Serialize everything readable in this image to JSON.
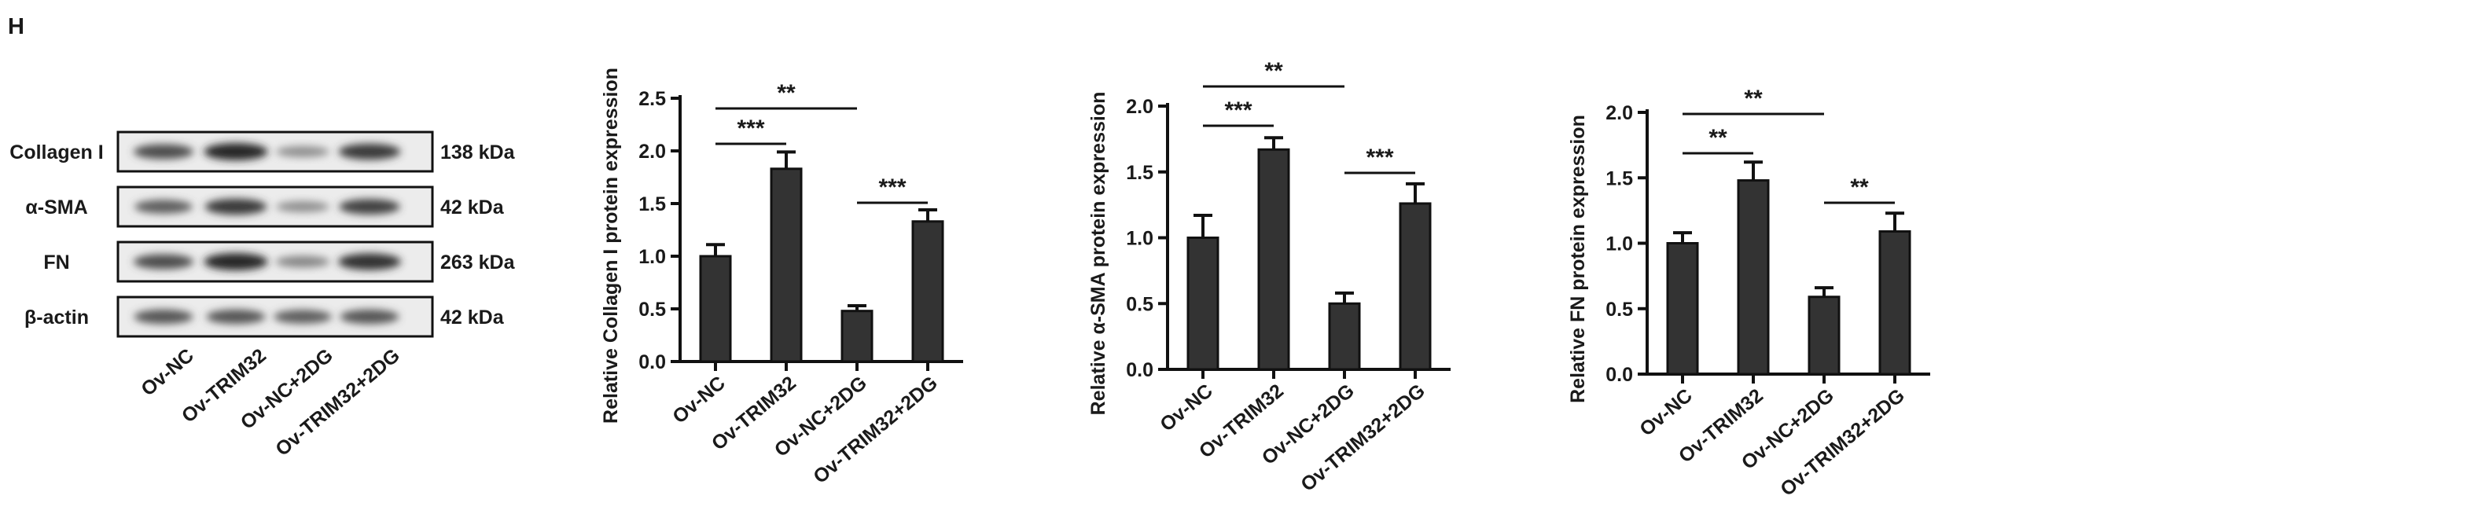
{
  "panel_letter": "H",
  "blot": {
    "rows": [
      {
        "protein": "Collagen I",
        "size": "138 kDa",
        "intensities": [
          0.65,
          0.85,
          0.3,
          0.75
        ]
      },
      {
        "protein": "α-SMA",
        "size": "42 kDa",
        "intensities": [
          0.55,
          0.75,
          0.3,
          0.7
        ]
      },
      {
        "protein": "FN",
        "size": "263 kDa",
        "intensities": [
          0.65,
          0.85,
          0.35,
          0.8
        ]
      },
      {
        "protein": "β-actin",
        "size": "42 kDa",
        "intensities": [
          0.6,
          0.6,
          0.55,
          0.6
        ]
      }
    ],
    "lanes": [
      "Ov-NC",
      "Ov-TRIM32",
      "Ov-NC+2DG",
      "Ov-TRIM32+2DG"
    ]
  },
  "chart_data": [
    {
      "type": "bar",
      "categories": [
        "Ov-NC",
        "Ov-TRIM32",
        "Ov-NC+2DG",
        "Ov-TRIM32+2DG"
      ],
      "values": [
        1.0,
        1.83,
        0.48,
        1.33
      ],
      "errors": [
        0.11,
        0.16,
        0.05,
        0.11
      ],
      "ylabel": "Relative Collagen I protein expression",
      "ylim": [
        0,
        2.5
      ],
      "yticks": [
        "0.0",
        "0.5",
        "1.0",
        "1.5",
        "2.0",
        "2.5"
      ],
      "comparisons": [
        {
          "from": 0,
          "to": 2,
          "label": "**"
        },
        {
          "from": 0,
          "to": 1,
          "label": "***"
        },
        {
          "from": 2,
          "to": 3,
          "label": "***"
        }
      ],
      "bar_color": "#333333"
    },
    {
      "type": "bar",
      "categories": [
        "Ov-NC",
        "Ov-TRIM32",
        "Ov-NC+2DG",
        "Ov-TRIM32+2DG"
      ],
      "values": [
        1.0,
        1.67,
        0.5,
        1.26
      ],
      "errors": [
        0.17,
        0.09,
        0.08,
        0.15
      ],
      "ylabel": "Relative α-SMA protein expression",
      "ylim": [
        0,
        2.0
      ],
      "yticks": [
        "0.0",
        "0.5",
        "1.0",
        "1.5",
        "2.0"
      ],
      "comparisons": [
        {
          "from": 0,
          "to": 2,
          "label": "**"
        },
        {
          "from": 0,
          "to": 1,
          "label": "***"
        },
        {
          "from": 2,
          "to": 3,
          "label": "***"
        }
      ],
      "bar_color": "#333333"
    },
    {
      "type": "bar",
      "categories": [
        "Ov-NC",
        "Ov-TRIM32",
        "Ov-NC+2DG",
        "Ov-TRIM32+2DG"
      ],
      "values": [
        1.0,
        1.48,
        0.59,
        1.09
      ],
      "errors": [
        0.08,
        0.14,
        0.07,
        0.14
      ],
      "ylabel": "Relative FN protein expression",
      "ylim": [
        0,
        2.0
      ],
      "yticks": [
        "0.0",
        "0.5",
        "1.0",
        "1.5",
        "2.0"
      ],
      "comparisons": [
        {
          "from": 0,
          "to": 2,
          "label": "**"
        },
        {
          "from": 0,
          "to": 1,
          "label": "**"
        },
        {
          "from": 2,
          "to": 3,
          "label": "**"
        }
      ],
      "bar_color": "#333333"
    }
  ]
}
